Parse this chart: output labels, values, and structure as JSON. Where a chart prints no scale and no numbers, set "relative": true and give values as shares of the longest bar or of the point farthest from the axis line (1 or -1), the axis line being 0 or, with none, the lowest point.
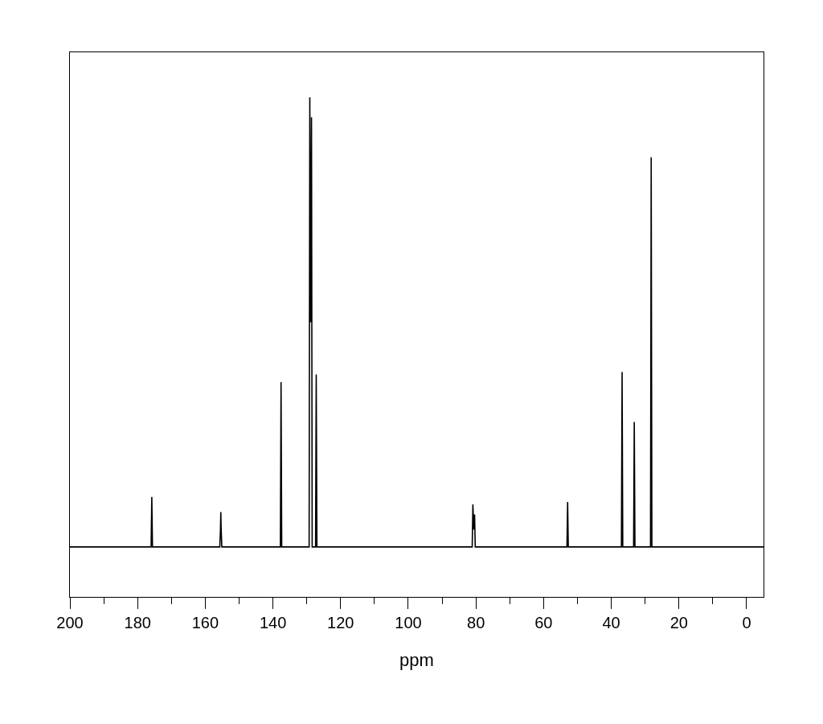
{
  "chart_data": {
    "type": "line",
    "relative": true,
    "xlabel": "ppm",
    "x": [
      200,
      176.0,
      175.8,
      175.6,
      155.7,
      155.5,
      155.4,
      155.3,
      155.1,
      137.8,
      137.6,
      137.4,
      129.3,
      129.1,
      128.85,
      128.6,
      128.4,
      127.4,
      127.2,
      127.0,
      81.1,
      80.9,
      80.65,
      80.4,
      80.2,
      53.1,
      52.9,
      52.7,
      37.0,
      36.8,
      36.6,
      33.4,
      33.2,
      33.0,
      28.4,
      28.2,
      28.0,
      -5
    ],
    "series": [
      {
        "color": "#000000",
        "values": [
          0.1,
          0.1,
          0.2,
          0.1,
          0.1,
          0.135,
          0.17,
          0.135,
          0.1,
          0.1,
          0.43,
          0.1,
          0.1,
          1.0,
          0.55,
          0.96,
          0.1,
          0.1,
          0.445,
          0.1,
          0.1,
          0.185,
          0.135,
          0.165,
          0.1,
          0.1,
          0.19,
          0.1,
          0.1,
          0.45,
          0.1,
          0.1,
          0.35,
          0.1,
          0.1,
          0.88,
          0.1,
          0.1
        ]
      }
    ],
    "xlim": [
      200,
      -5
    ],
    "xticks": [
      200,
      {
        "value": 190,
        "label": null
      },
      180,
      {
        "value": 170,
        "label": null
      },
      160,
      {
        "value": 150,
        "label": null
      },
      140,
      {
        "value": 130,
        "label": null
      },
      120,
      {
        "value": 110,
        "label": null
      },
      100,
      {
        "value": 90,
        "label": null
      },
      80,
      {
        "value": 70,
        "label": null
      },
      60,
      {
        "value": 50,
        "label": null
      },
      40,
      {
        "value": 30,
        "label": null
      },
      20,
      {
        "value": 10,
        "label": null
      },
      0
    ],
    "tick_labels": "x",
    "marker": "none",
    "line_style": "solid"
  }
}
